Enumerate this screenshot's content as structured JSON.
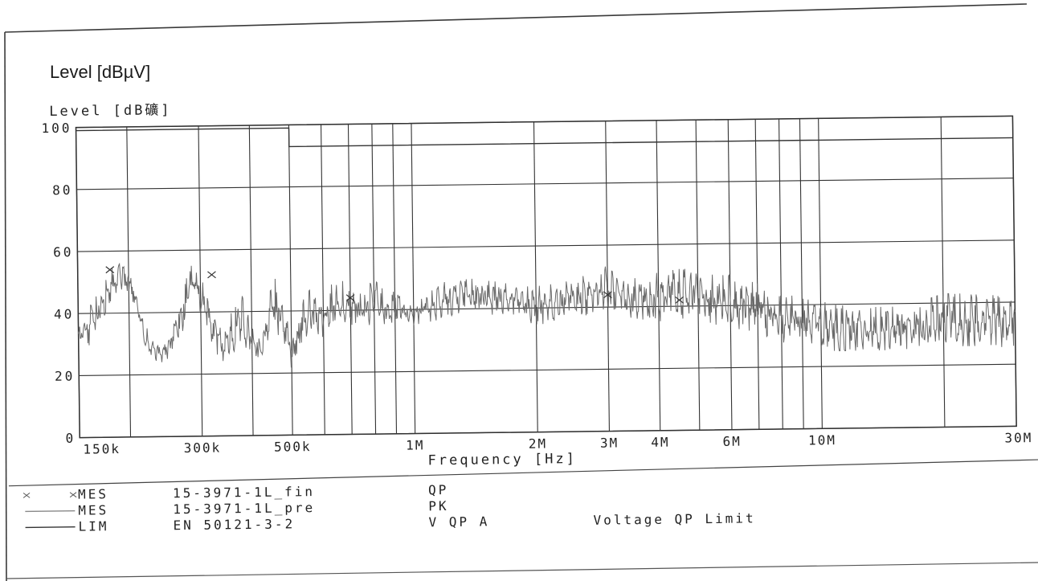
{
  "chart_data": {
    "type": "line",
    "title_overlay": "Level [dBµV]",
    "title": "Level  [dB礦]",
    "xlabel": "Frequency  [Hz]",
    "x_scale": "log",
    "xlim": [
      150000,
      30000000
    ],
    "x_ticks": [
      {
        "label": "150k",
        "value": 150000
      },
      {
        "label": "300k",
        "value": 300000
      },
      {
        "label": "500k",
        "value": 500000
      },
      {
        "label": "1M",
        "value": 1000000
      },
      {
        "label": "2M",
        "value": 2000000
      },
      {
        "label": "3M",
        "value": 3000000
      },
      {
        "label": "4M",
        "value": 4000000
      },
      {
        "label": "6M",
        "value": 6000000
      },
      {
        "label": "10M",
        "value": 10000000
      },
      {
        "label": "30M",
        "value": 30000000
      }
    ],
    "ylim": [
      0,
      100
    ],
    "y_ticks": [
      {
        "label": "0",
        "value": 0
      },
      {
        "label": "20",
        "value": 20
      },
      {
        "label": "40",
        "value": 40
      },
      {
        "label": "60",
        "value": 60
      },
      {
        "label": "80",
        "value": 80
      },
      {
        "label": "100",
        "value": 100
      }
    ],
    "grid_x_hz": [
      150000,
      200000,
      300000,
      400000,
      500000,
      600000,
      700000,
      800000,
      900000,
      1000000,
      2000000,
      3000000,
      4000000,
      5000000,
      6000000,
      7000000,
      8000000,
      9000000,
      10000000,
      20000000,
      30000000
    ],
    "series": [
      {
        "name": "15-3971-1L_pre PK",
        "style": "thin-gray",
        "envelope": {
          "x": [
            150000,
            160000,
            175000,
            190000,
            205000,
            215000,
            225000,
            240000,
            255000,
            270000,
            285000,
            300000,
            320000,
            340000,
            360000,
            380000,
            400000,
            420000,
            440000,
            460000,
            480000,
            500000,
            520000,
            540000,
            560000,
            580000,
            600000,
            630000,
            660000,
            700000,
            750000,
            800000,
            850000,
            900000,
            950000,
            1000000,
            1200000,
            1500000,
            1800000,
            2000000,
            2300000,
            2600000,
            2900000,
            3200000,
            3600000,
            4000000,
            4500000,
            5000000,
            5500000,
            6000000,
            7000000,
            8000000,
            9000000,
            10000000,
            12000000,
            15000000,
            18000000,
            20000000,
            25000000,
            30000000
          ],
          "high": [
            35,
            42,
            52,
            57,
            52,
            40,
            32,
            28,
            35,
            47,
            55,
            52,
            40,
            33,
            42,
            45,
            35,
            32,
            45,
            51,
            44,
            30,
            38,
            45,
            47,
            43,
            42,
            49,
            50,
            48,
            46,
            50,
            46,
            47,
            44,
            42,
            49,
            50,
            47,
            47,
            48,
            50,
            54,
            50,
            49,
            51,
            52,
            53,
            50,
            50,
            47,
            44,
            42,
            41,
            39,
            39,
            41,
            43,
            43,
            41
          ],
          "low": [
            30,
            29,
            40,
            48,
            42,
            30,
            25,
            24,
            26,
            32,
            45,
            40,
            28,
            24,
            27,
            30,
            25,
            24,
            28,
            33,
            30,
            21,
            26,
            30,
            33,
            32,
            31,
            33,
            35,
            33,
            33,
            36,
            34,
            36,
            35,
            35,
            37,
            38,
            38,
            34,
            36,
            37,
            38,
            37,
            36,
            35,
            36,
            36,
            34,
            33,
            31,
            28,
            27,
            25,
            25,
            25,
            25,
            26,
            26,
            25
          ]
        }
      },
      {
        "name": "15-3971-1L_fin QP",
        "style": "x-markers",
        "x": [
          180000,
          320000,
          700000,
          3000000,
          4500000
        ],
        "y": [
          54,
          52,
          44,
          44,
          42
        ]
      },
      {
        "name": "EN 50121-3-2 V QP A",
        "style": "limit-line",
        "description": "Voltage QP Limit",
        "x": [
          150000,
          500000,
          500000,
          30000000
        ],
        "y": [
          99,
          99,
          93,
          93
        ]
      }
    ],
    "legend": {
      "placement": "bottom",
      "rows": [
        {
          "symbol": "×  ×",
          "key": "MES",
          "name": "15-3971-1L_fin",
          "detector": "QP",
          "extra": ""
        },
        {
          "symbol": "——",
          "key": "MES",
          "name": "15-3971-1L_pre",
          "detector": "PK",
          "extra": ""
        },
        {
          "symbol": "——",
          "key": "LIM",
          "name": "EN 50121-3-2",
          "detector": "V  QP A",
          "extra": "Voltage  QP  Limit"
        }
      ]
    },
    "grid": true
  }
}
